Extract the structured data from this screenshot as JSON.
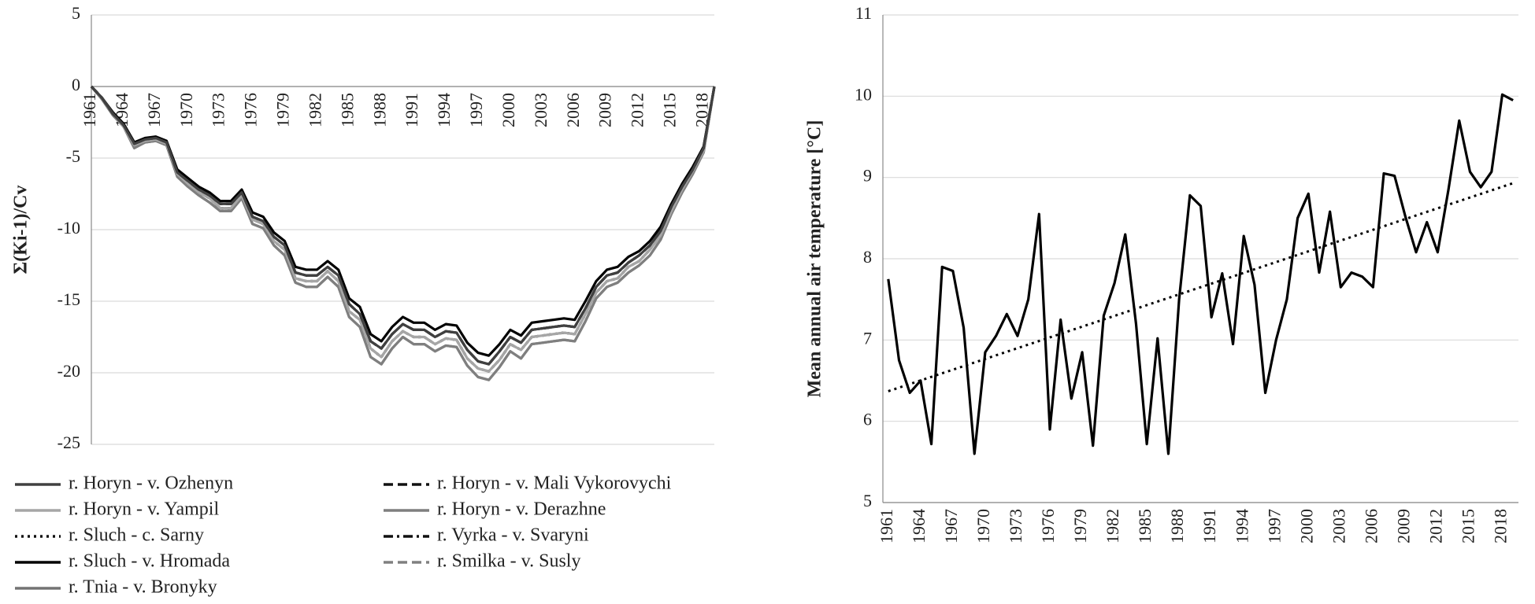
{
  "chart_data": [
    {
      "type": "line",
      "y_label": "Σ(Ki-1)/Cv",
      "categories": [
        "1961",
        null,
        null,
        "1964",
        null,
        null,
        "1967",
        null,
        null,
        "1970",
        null,
        null,
        "1973",
        null,
        null,
        "1976",
        null,
        null,
        "1979",
        null,
        null,
        "1982",
        null,
        null,
        "1985",
        null,
        null,
        "1988",
        null,
        null,
        "1991",
        null,
        null,
        "1994",
        null,
        null,
        "1997",
        null,
        null,
        "2000",
        null,
        null,
        "2003",
        null,
        null,
        "2006",
        null,
        null,
        "2009",
        null,
        null,
        "2012",
        null,
        null,
        "2015",
        null,
        null,
        "2018",
        null
      ],
      "ylim": [
        -25,
        5
      ],
      "yticks": [
        -25,
        -20,
        -15,
        -10,
        -5,
        0,
        5
      ],
      "grid": true,
      "series": [
        {
          "name": "r. Horyn - v. Ozhenyn",
          "color": "#404040",
          "style": "solid",
          "values": [
            0,
            -0.8,
            -1.9,
            -2.7,
            -4.0,
            -3.7,
            -3.6,
            -3.9,
            -6.0,
            -6.6,
            -7.2,
            -7.6,
            -8.2,
            -8.2,
            -7.4,
            -9.1,
            -9.4,
            -10.5,
            -11.1,
            -13.0,
            -13.2,
            -13.2,
            -12.6,
            -13.2,
            -15.2,
            -15.9,
            -17.8,
            -18.3,
            -17.3,
            -16.6,
            -17.0,
            -17.0,
            -17.5,
            -17.1,
            -17.2,
            -18.4,
            -19.2,
            -19.4,
            -18.5,
            -17.5,
            -17.9,
            -17.0,
            -16.9,
            -16.8,
            -16.7,
            -16.8,
            -15.5,
            -14.0,
            -13.2,
            -13.0,
            -12.3,
            -11.8,
            -11.1,
            -10.1,
            -8.4,
            -7.0,
            -5.8,
            -4.3,
            0
          ]
        },
        {
          "name": "r. Horyn - v. Mali Vykorovychi",
          "color": "#111111",
          "style": "dashed",
          "values": [
            0,
            -0.8,
            -1.9,
            -2.7,
            -4.0,
            -3.7,
            -3.6,
            -3.9,
            -6.0,
            -6.6,
            -7.2,
            -7.6,
            -8.2,
            -8.2,
            -7.4,
            -9.1,
            -9.4,
            -10.5,
            -11.1,
            -13.0,
            -13.2,
            -13.2,
            -12.6,
            -13.2,
            -15.2,
            -15.9,
            -17.8,
            -18.3,
            -17.3,
            -16.6,
            -17.0,
            -17.0,
            -17.5,
            -17.1,
            -17.2,
            -18.4,
            -19.2,
            -19.4,
            -18.5,
            -17.5,
            -17.9,
            -17.0,
            -16.9,
            -16.8,
            -16.7,
            -16.8,
            -15.5,
            -14.0,
            -13.2,
            -13.0,
            -12.3,
            -11.8,
            -11.1,
            -10.1,
            -8.4,
            -7.0,
            -5.8,
            -4.3,
            0
          ]
        },
        {
          "name": "r. Horyn - v. Yampil",
          "color": "#a6a6a6",
          "style": "solid",
          "values": [
            0,
            -0.8,
            -1.9,
            -2.8,
            -4.1,
            -3.8,
            -3.7,
            -4.0,
            -6.1,
            -6.8,
            -7.4,
            -7.8,
            -8.5,
            -8.5,
            -7.6,
            -9.3,
            -9.6,
            -10.8,
            -11.4,
            -13.4,
            -13.6,
            -13.6,
            -12.9,
            -13.6,
            -15.7,
            -16.3,
            -18.3,
            -18.9,
            -17.8,
            -17.1,
            -17.5,
            -17.5,
            -18.0,
            -17.6,
            -17.7,
            -19.0,
            -19.7,
            -19.9,
            -19.1,
            -18.0,
            -18.4,
            -17.5,
            -17.4,
            -17.3,
            -17.2,
            -17.3,
            -15.9,
            -14.4,
            -13.6,
            -13.4,
            -12.6,
            -12.2,
            -11.4,
            -10.4,
            -8.7,
            -7.2,
            -5.9,
            -4.5,
            0
          ]
        },
        {
          "name": "r. Horyn - v. Derazhne",
          "color": "#7f7f7f",
          "style": "solid",
          "values": [
            0,
            -0.9,
            -2.0,
            -2.8,
            -4.3,
            -3.9,
            -3.8,
            -4.1,
            -6.3,
            -7.0,
            -7.6,
            -8.1,
            -8.7,
            -8.7,
            -7.8,
            -9.6,
            -9.9,
            -11.1,
            -11.8,
            -13.7,
            -14.0,
            -14.0,
            -13.3,
            -14.0,
            -16.1,
            -16.8,
            -18.9,
            -19.4,
            -18.3,
            -17.5,
            -18.0,
            -18.0,
            -18.5,
            -18.1,
            -18.2,
            -19.5,
            -20.3,
            -20.5,
            -19.6,
            -18.5,
            -19.0,
            -18.0,
            -17.9,
            -17.8,
            -17.7,
            -17.8,
            -16.4,
            -14.8,
            -14.0,
            -13.7,
            -13.0,
            -12.5,
            -11.8,
            -10.7,
            -8.9,
            -7.4,
            -6.1,
            -4.6,
            0
          ]
        },
        {
          "name": "r. Sluch - c. Sarny",
          "color": "#111111",
          "style": "dotted",
          "values": [
            0,
            -0.8,
            -1.9,
            -2.8,
            -4.1,
            -3.8,
            -3.7,
            -4.0,
            -6.1,
            -6.8,
            -7.4,
            -7.8,
            -8.5,
            -8.5,
            -7.6,
            -9.3,
            -9.6,
            -10.8,
            -11.4,
            -13.4,
            -13.6,
            -13.6,
            -12.9,
            -13.6,
            -15.7,
            -16.3,
            -18.3,
            -18.9,
            -17.8,
            -17.1,
            -17.5,
            -17.5,
            -18.0,
            -17.6,
            -17.7,
            -19.0,
            -19.7,
            -19.9,
            -19.1,
            -18.0,
            -18.4,
            -17.5,
            -17.4,
            -17.3,
            -17.2,
            -17.3,
            -15.9,
            -14.4,
            -13.6,
            -13.4,
            -12.6,
            -12.2,
            -11.4,
            -10.4,
            -8.7,
            -7.2,
            -5.9,
            -4.5,
            0
          ]
        },
        {
          "name": "r. Vyrka - v. Svaryni",
          "color": "#111111",
          "style": "dashdot",
          "values": [
            0,
            -0.8,
            -1.9,
            -2.7,
            -4.0,
            -3.7,
            -3.6,
            -3.9,
            -6.0,
            -6.6,
            -7.2,
            -7.6,
            -8.2,
            -8.2,
            -7.4,
            -9.1,
            -9.4,
            -10.5,
            -11.1,
            -13.0,
            -13.2,
            -13.2,
            -12.6,
            -13.2,
            -15.2,
            -15.9,
            -17.8,
            -18.3,
            -17.3,
            -16.6,
            -17.0,
            -17.0,
            -17.5,
            -17.1,
            -17.2,
            -18.4,
            -19.2,
            -19.4,
            -18.5,
            -17.5,
            -17.9,
            -17.0,
            -16.9,
            -16.8,
            -16.7,
            -16.8,
            -15.5,
            -14.0,
            -13.2,
            -13.0,
            -12.3,
            -11.8,
            -11.1,
            -10.1,
            -8.4,
            -7.0,
            -5.8,
            -4.3,
            0
          ]
        },
        {
          "name": "r. Sluch - v. Hromada",
          "color": "#000000",
          "style": "solid",
          "values": [
            0,
            -0.8,
            -1.8,
            -2.6,
            -3.9,
            -3.6,
            -3.5,
            -3.8,
            -5.8,
            -6.4,
            -7.0,
            -7.4,
            -8.0,
            -8.0,
            -7.2,
            -8.8,
            -9.1,
            -10.2,
            -10.8,
            -12.6,
            -12.8,
            -12.8,
            -12.2,
            -12.8,
            -14.8,
            -15.4,
            -17.3,
            -17.8,
            -16.8,
            -16.1,
            -16.5,
            -16.5,
            -17.0,
            -16.6,
            -16.7,
            -17.9,
            -18.6,
            -18.8,
            -18.0,
            -17.0,
            -17.4,
            -16.5,
            -16.4,
            -16.3,
            -16.2,
            -16.3,
            -15.0,
            -13.6,
            -12.8,
            -12.6,
            -11.9,
            -11.5,
            -10.8,
            -9.8,
            -8.2,
            -6.8,
            -5.6,
            -4.2,
            0
          ]
        },
        {
          "name": "r. Smilka - v. Susly",
          "color": "#808080",
          "style": "dashed",
          "values": [
            0,
            -0.8,
            -1.9,
            -2.8,
            -4.1,
            -3.8,
            -3.7,
            -4.0,
            -6.1,
            -6.8,
            -7.4,
            -7.8,
            -8.5,
            -8.5,
            -7.6,
            -9.3,
            -9.6,
            -10.8,
            -11.4,
            -13.4,
            -13.6,
            -13.6,
            -12.9,
            -13.6,
            -15.7,
            -16.3,
            -18.3,
            -18.9,
            -17.8,
            -17.1,
            -17.5,
            -17.5,
            -18.0,
            -17.6,
            -17.7,
            -19.0,
            -19.7,
            -19.9,
            -19.1,
            -18.0,
            -18.4,
            -17.5,
            -17.4,
            -17.3,
            -17.2,
            -17.3,
            -15.9,
            -14.4,
            -13.6,
            -13.4,
            -12.6,
            -12.2,
            -11.4,
            -10.4,
            -8.7,
            -7.2,
            -5.9,
            -4.5,
            0
          ]
        },
        {
          "name": "r. Tnia - v. Bronyky",
          "color": "#737373",
          "style": "solid",
          "values": [
            0,
            -0.9,
            -2.0,
            -2.8,
            -4.3,
            -3.9,
            -3.8,
            -4.1,
            -6.3,
            -7.0,
            -7.6,
            -8.1,
            -8.7,
            -8.7,
            -7.8,
            -9.6,
            -9.9,
            -11.1,
            -11.8,
            -13.7,
            -14.0,
            -14.0,
            -13.3,
            -14.0,
            -16.1,
            -16.8,
            -18.9,
            -19.4,
            -18.3,
            -17.5,
            -18.0,
            -18.0,
            -18.5,
            -18.1,
            -18.2,
            -19.5,
            -20.3,
            -20.5,
            -19.6,
            -18.5,
            -19.0,
            -18.0,
            -17.9,
            -17.8,
            -17.7,
            -17.8,
            -16.4,
            -14.8,
            -14.0,
            -13.7,
            -13.0,
            -12.5,
            -11.8,
            -10.7,
            -8.9,
            -7.4,
            -6.1,
            -4.6,
            0
          ]
        }
      ]
    },
    {
      "type": "line",
      "y_label": "Mean annual air temperature [°C]",
      "categories": [
        "1961",
        null,
        null,
        "1964",
        null,
        null,
        "1967",
        null,
        null,
        "1970",
        null,
        null,
        "1973",
        null,
        null,
        "1976",
        null,
        null,
        "1979",
        null,
        null,
        "1982",
        null,
        null,
        "1985",
        null,
        null,
        "1988",
        null,
        null,
        "1991",
        null,
        null,
        "1994",
        null,
        null,
        "1997",
        null,
        null,
        "2000",
        null,
        null,
        "2003",
        null,
        null,
        "2006",
        null,
        null,
        "2009",
        null,
        null,
        "2012",
        null,
        null,
        "2015",
        null,
        null,
        "2018",
        null
      ],
      "ylim": [
        5,
        11
      ],
      "yticks": [
        5,
        6,
        7,
        8,
        9,
        10,
        11
      ],
      "grid": true,
      "series": [
        {
          "color": "#000000",
          "style": "solid",
          "values": [
            7.75,
            6.75,
            6.35,
            6.5,
            5.72,
            7.9,
            7.85,
            7.15,
            5.6,
            6.85,
            7.05,
            7.32,
            7.05,
            7.5,
            8.55,
            5.9,
            7.25,
            6.28,
            6.85,
            5.7,
            7.3,
            7.7,
            8.3,
            7.2,
            5.72,
            7.02,
            5.6,
            7.5,
            8.78,
            8.65,
            7.28,
            7.82,
            6.95,
            8.28,
            7.68,
            6.35,
            7.0,
            7.5,
            8.5,
            8.8,
            7.83,
            8.58,
            7.65,
            7.83,
            7.78,
            7.65,
            9.05,
            9.02,
            8.52,
            8.08,
            8.45,
            8.08,
            8.85,
            9.7,
            9.07,
            8.88,
            9.07,
            10.02,
            9.95
          ]
        }
      ],
      "trend": {
        "color": "#000000",
        "style": "dotted",
        "start": 6.37,
        "end": 8.93
      }
    }
  ]
}
